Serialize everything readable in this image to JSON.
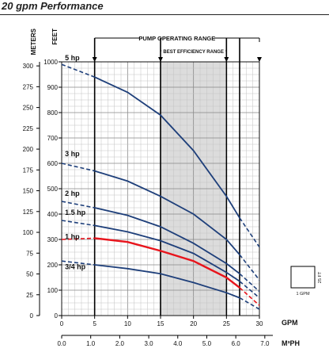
{
  "page_title": "20 gpm Performance",
  "chart_data": {
    "type": "line",
    "xlabel": "GPM",
    "ylabel": "FEET",
    "secondary_xlabel": "M³PH",
    "secondary_ylabel": "METERS",
    "x_ticks": [
      0,
      5,
      10,
      15,
      20,
      25,
      30
    ],
    "feet_ticks": [
      0,
      100,
      200,
      300,
      400,
      500,
      600,
      700,
      800,
      900,
      1000
    ],
    "meters_ticks": [
      0,
      25,
      50,
      75,
      100,
      125,
      150,
      175,
      200,
      225,
      250,
      275,
      300
    ],
    "m3ph_ticks": [
      "0.0",
      "1.0",
      "2.0",
      "3.0",
      "4.0",
      "5.0",
      "6.0",
      "7.0"
    ],
    "xlim": [
      0,
      30
    ],
    "ylim": [
      0,
      1000
    ],
    "grid": true,
    "pump_operating_range": {
      "label": "PUMP OPERATING RANGE",
      "x": [
        5,
        30
      ]
    },
    "best_efficiency_range": {
      "label": "BEST EFFICIENCY RANGE",
      "x": [
        15,
        25
      ]
    },
    "operating_markers_x": [
      5,
      15,
      25,
      27
    ],
    "scale_key": {
      "x_label": "1 GPM",
      "y_label": "25 FT"
    },
    "highlight_color": "#e8141c",
    "curve_color": "#1e3f7a",
    "series": [
      {
        "name": "5 hp",
        "label_y": 993,
        "x": [
          0,
          5,
          10,
          15,
          20,
          25,
          27,
          30
        ],
        "y": [
          990,
          940,
          880,
          790,
          650,
          470,
          385,
          270
        ]
      },
      {
        "name": "3 hp",
        "label_y": 615,
        "x": [
          0,
          5,
          10,
          15,
          20,
          25,
          27,
          30
        ],
        "y": [
          600,
          570,
          530,
          470,
          400,
          300,
          240,
          140
        ]
      },
      {
        "name": "2 hp",
        "label_y": 459,
        "x": [
          0,
          5,
          10,
          15,
          20,
          25,
          27,
          30
        ],
        "y": [
          450,
          425,
          395,
          350,
          285,
          205,
          165,
          95
        ]
      },
      {
        "name": "1.5 hp",
        "label_y": 385,
        "x": [
          0,
          5,
          10,
          15,
          20,
          25,
          27,
          30
        ],
        "y": [
          375,
          355,
          330,
          295,
          245,
          170,
          135,
          70
        ]
      },
      {
        "name": "1 hp",
        "label_y": 289,
        "highlight": true,
        "x": [
          0,
          5,
          10,
          15,
          20,
          25,
          27,
          30
        ],
        "y": [
          300,
          305,
          290,
          255,
          215,
          150,
          110,
          40
        ]
      },
      {
        "name": "3/4 hp",
        "label_y": 170,
        "x": [
          0,
          5,
          10,
          15,
          20,
          25,
          27,
          30
        ],
        "y": [
          215,
          200,
          185,
          165,
          130,
          90,
          70,
          25
        ]
      }
    ]
  }
}
